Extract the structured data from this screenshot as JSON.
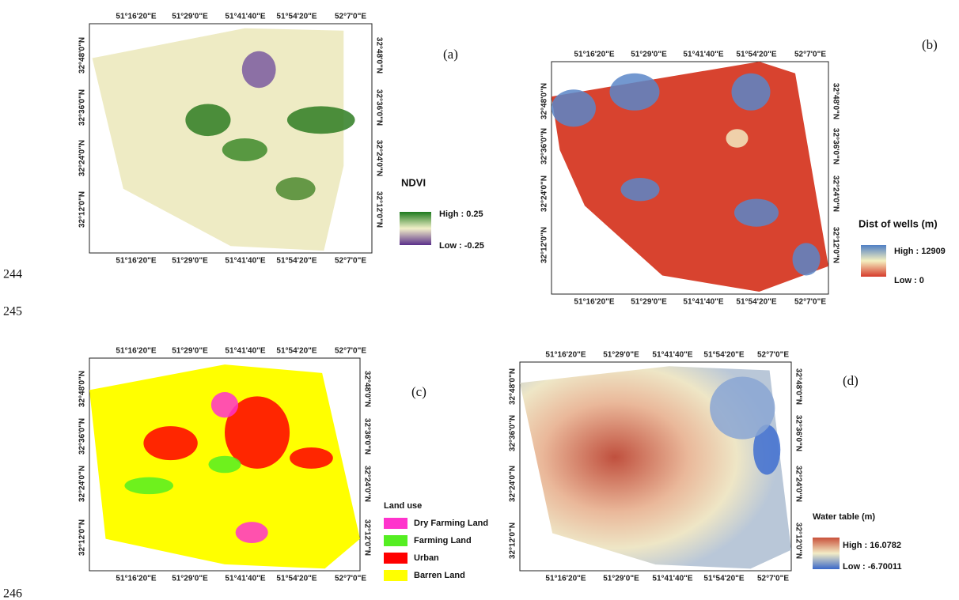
{
  "line_numbers": [
    "244",
    "245",
    "246"
  ],
  "panels": [
    {
      "label": "(a)",
      "x_ticks": [
        "51°16'20\"E",
        "51°29'0\"E",
        "51°41'40\"E",
        "51°54'20\"E",
        "52°7'0\"E"
      ],
      "y_ticks": [
        "32°48'0\"N",
        "32°36'0\"N",
        "32°24'0\"N",
        "32°12'0\"N"
      ],
      "legend": {
        "title": "NDVI",
        "high": "High : 0.25",
        "low": "Low : -0.25",
        "colors": [
          "#1e7a1e",
          "#f2f0c8",
          "#5a2f8a"
        ]
      }
    },
    {
      "label": "(b)",
      "x_ticks": [
        "51°16'20\"E",
        "51°29'0\"E",
        "51°41'40\"E",
        "51°54'20\"E",
        "52°7'0\"E"
      ],
      "y_ticks": [
        "32°48'0\"N",
        "32°36'0\"N",
        "32°24'0\"N",
        "32°12'0\"N"
      ],
      "legend": {
        "title": "Dist of wells (m)",
        "high": "High : 12909",
        "low": "Low : 0",
        "colors": [
          "#4f7fc4",
          "#f5f0c0",
          "#d63a2a"
        ]
      }
    },
    {
      "label": "(c)",
      "x_ticks": [
        "51°16'20\"E",
        "51°29'0\"E",
        "51°41'40\"E",
        "51°54'20\"E",
        "52°7'0\"E"
      ],
      "y_ticks": [
        "32°48'0\"N",
        "32°36'0\"N",
        "32°24'0\"N",
        "32°12'0\"N"
      ],
      "legend": {
        "title": "Land use",
        "items": [
          {
            "label": "Dry Farming Land",
            "color": "#ff33cc"
          },
          {
            "label": "Farming Land",
            "color": "#55ee22"
          },
          {
            "label": "Urban",
            "color": "#ff0000"
          },
          {
            "label": "Barren Land",
            "color": "#ffff00"
          }
        ]
      }
    },
    {
      "label": "(d)",
      "x_ticks": [
        "51°16'20\"E",
        "51°29'0\"E",
        "51°41'40\"E",
        "51°54'20\"E",
        "52°7'0\"E"
      ],
      "y_ticks": [
        "32°48'0\"N",
        "32°36'0\"N",
        "32°24'0\"N",
        "32°12'0\"N"
      ],
      "legend": {
        "title": "Water table (m)",
        "high": "High : 16.0782",
        "low": "Low : -6.70011",
        "colors": [
          "#c9503a",
          "#f3ecc6",
          "#3a68c8"
        ]
      }
    }
  ]
}
